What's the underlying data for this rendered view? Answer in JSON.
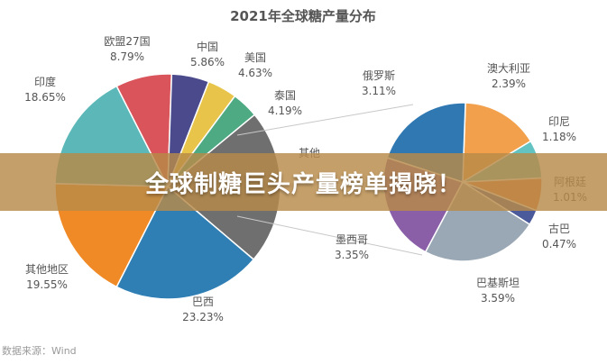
{
  "chart_data": {
    "type": "pie",
    "title": "2021年全球糖产量分布",
    "main_pie": {
      "slices": [
        {
          "label": "欧盟27国",
          "value": 8.79,
          "color": "#d9545b"
        },
        {
          "label": "中国",
          "value": 5.86,
          "color": "#4a4a8c"
        },
        {
          "label": "美国",
          "value": 4.63,
          "color": "#e8c54a"
        },
        {
          "label": "泰国",
          "value": 4.19,
          "color": "#4daa83"
        },
        {
          "label": "其他",
          "value": 24.25,
          "color": "#6f6f6f"
        },
        {
          "label": "巴西",
          "value": 23.23,
          "color": "#2f7fb5"
        },
        {
          "label": "其他地区",
          "value": 19.55,
          "color": "#f08a26"
        },
        {
          "label": "印度",
          "value": 18.65,
          "color": "#5cb8b8"
        }
      ]
    },
    "sub_pie": {
      "slices": [
        {
          "label": "澳大利亚",
          "value": 2.39,
          "color": "#f2a04c"
        },
        {
          "label": "印尼",
          "value": 1.18,
          "color": "#63c3c3"
        },
        {
          "label": "阿根廷",
          "value": 1.01,
          "color": "#e07a3c"
        },
        {
          "label": "古巴",
          "value": 0.47,
          "color": "#4a5a9a"
        },
        {
          "label": "巴基斯坦",
          "value": 3.59,
          "color": "#9aa8b5"
        },
        {
          "label": "墨西哥",
          "value": 3.35,
          "color": "#8a5fa8"
        },
        {
          "label": "俄罗斯",
          "value": 3.11,
          "color": "#2f78b2"
        }
      ]
    },
    "labels": [
      {
        "name": "欧盟27国",
        "pct": "8.79%"
      },
      {
        "name": "中国",
        "pct": "5.86%"
      },
      {
        "name": "美国",
        "pct": "4.63%"
      },
      {
        "name": "泰国",
        "pct": "4.19%"
      },
      {
        "name": "其他",
        "pct": ""
      },
      {
        "name": "印度",
        "pct": "18.65%"
      },
      {
        "name": "其他地区",
        "pct": "19.55%"
      },
      {
        "name": "巴西",
        "pct": "23.23%"
      },
      {
        "name": "俄罗斯",
        "pct": "3.11%"
      },
      {
        "name": "澳大利亚",
        "pct": "2.39%"
      },
      {
        "name": "印尼",
        "pct": "1.18%"
      },
      {
        "name": "阿根廷",
        "pct": "1.01%"
      },
      {
        "name": "古巴",
        "pct": "0.47%"
      },
      {
        "name": "墨西哥",
        "pct": "3.35%"
      },
      {
        "name": "巴基斯坦",
        "pct": "3.59%"
      }
    ]
  },
  "banner": {
    "text": "全球制糖巨头产量榜单揭晓！"
  },
  "source": {
    "text": "数据来源：Wind"
  }
}
